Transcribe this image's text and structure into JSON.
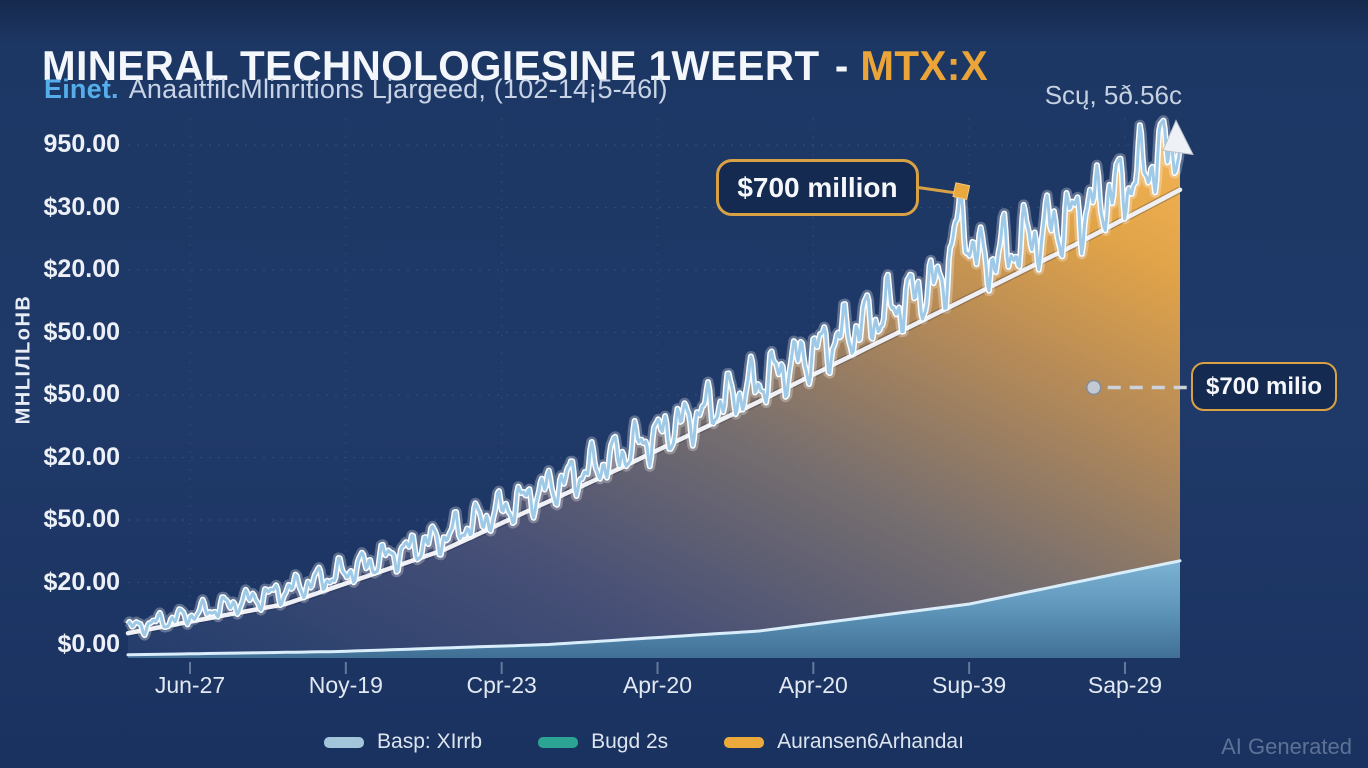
{
  "header": {
    "title": "MINERAL TECHNOLOGIESINE 1WEERT",
    "separator": "-",
    "ticker": "MTX:X",
    "subtitle_lead": "Einet.",
    "subtitle_rest": "AnaaitfilcMlinritions Ljargeed, (102-14¡5-46l)",
    "top_right": "Scų, 5ð.56c"
  },
  "watermark": "AI Generated",
  "colors": {
    "background": "#1d3765",
    "accent_orange": "#e9a93e",
    "accent_blue": "#55aeea",
    "price_line": "#9ec9e7",
    "trend_line": "#eef0f5",
    "bottom_area": "#5b92b6",
    "callout_border": "#d7a144"
  },
  "chart_data": {
    "type": "area",
    "title": "MINERAL TECHNOLOGIESINE 1WEERT - MTX:X",
    "ylabel": "MHLIЛLoHB",
    "x_tick_labels": [
      "Jun-27",
      "Noy-19",
      "Cpr-23",
      "Apr-20",
      "Apr-20",
      "Sup-39",
      "Sap-29"
    ],
    "y_tick_labels": [
      "950.00",
      "$30.00",
      "$20.00",
      "$50.00",
      "$50.00",
      "$20.00",
      "$50.00",
      "$20.00",
      "$0.00"
    ],
    "grid": "dotted",
    "legend_position": "bottom",
    "legend": [
      {
        "label": "Basp: XIrrb",
        "color": "#a3c6db"
      },
      {
        "label": "Bugd 2s",
        "color": "#2ba493"
      },
      {
        "label": "Auransen6Arhandaı",
        "color": "#ecaa3c"
      }
    ],
    "series": [
      {
        "name": "price",
        "kind": "jagged-area-gradient",
        "base_points": [
          [
            0,
            0.055
          ],
          [
            0.05,
            0.075
          ],
          [
            0.1,
            0.1
          ],
          [
            0.15,
            0.125
          ],
          [
            0.2,
            0.155
          ],
          [
            0.25,
            0.19
          ],
          [
            0.3,
            0.225
          ],
          [
            0.35,
            0.27
          ],
          [
            0.4,
            0.315
          ],
          [
            0.45,
            0.36
          ],
          [
            0.5,
            0.41
          ],
          [
            0.55,
            0.46
          ],
          [
            0.6,
            0.51
          ],
          [
            0.65,
            0.565
          ],
          [
            0.7,
            0.62
          ],
          [
            0.75,
            0.675
          ],
          [
            0.8,
            0.72
          ],
          [
            0.85,
            0.77
          ],
          [
            0.9,
            0.82
          ],
          [
            0.95,
            0.88
          ],
          [
            1,
            0.965
          ]
        ],
        "oscillation": {
          "cycles": 46,
          "amp_start": 0.018,
          "amp_end": 0.09,
          "h1": 0.5,
          "h2": 0.33,
          "h3": 0.17
        },
        "spike": {
          "t": 0.792,
          "height": 0.1,
          "sigma": 0.011
        }
      },
      {
        "name": "trend",
        "kind": "line",
        "points": [
          [
            0,
            0.046
          ],
          [
            0.15,
            0.1
          ],
          [
            0.3,
            0.2
          ],
          [
            0.45,
            0.335
          ],
          [
            0.6,
            0.475
          ],
          [
            0.75,
            0.62
          ],
          [
            0.9,
            0.765
          ],
          [
            1,
            0.867
          ]
        ]
      },
      {
        "name": "baseline-area",
        "kind": "area",
        "points": [
          [
            0,
            0.006
          ],
          [
            0.2,
            0.012
          ],
          [
            0.4,
            0.025
          ],
          [
            0.6,
            0.05
          ],
          [
            0.8,
            0.1
          ],
          [
            1,
            0.18
          ]
        ]
      }
    ],
    "annotations": [
      {
        "text": "$700 million",
        "anchor_t": 0.792,
        "style": "solid-connector"
      },
      {
        "text": "$700 milio",
        "anchor_t": 0.918,
        "anchor_v": 0.501,
        "style": "dashed-connector"
      }
    ]
  }
}
